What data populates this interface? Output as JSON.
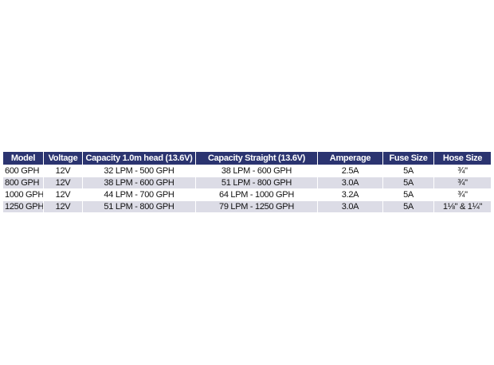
{
  "table": {
    "headers": [
      "Model",
      "Voltage",
      "Capacity 1.0m head (13.6V)",
      "Capacity Straight (13.6V)",
      "Amperage",
      "Fuse Size",
      "Hose Size"
    ],
    "rows": [
      [
        "600 GPH",
        "12V",
        "32 LPM - 500 GPH",
        "38 LPM - 600 GPH",
        "2.5A",
        "5A",
        "¾\""
      ],
      [
        "800 GPH",
        "12V",
        "38 LPM - 600 GPH",
        "51 LPM - 800 GPH",
        "3.0A",
        "5A",
        "¾\""
      ],
      [
        "1000 GPH",
        "12V",
        "44 LPM - 700 GPH",
        "64 LPM - 1000 GPH",
        "3.2A",
        "5A",
        "¾\""
      ],
      [
        "1250 GPH",
        "12V",
        "51 LPM - 800 GPH",
        "79 LPM - 1250 GPH",
        "3.0A",
        "5A",
        "1⅛\" & 1¼\""
      ]
    ]
  },
  "colors": {
    "header_background": "#2b3470",
    "header_text": "#ffffff",
    "alt_row_background": "#dcdce6"
  }
}
